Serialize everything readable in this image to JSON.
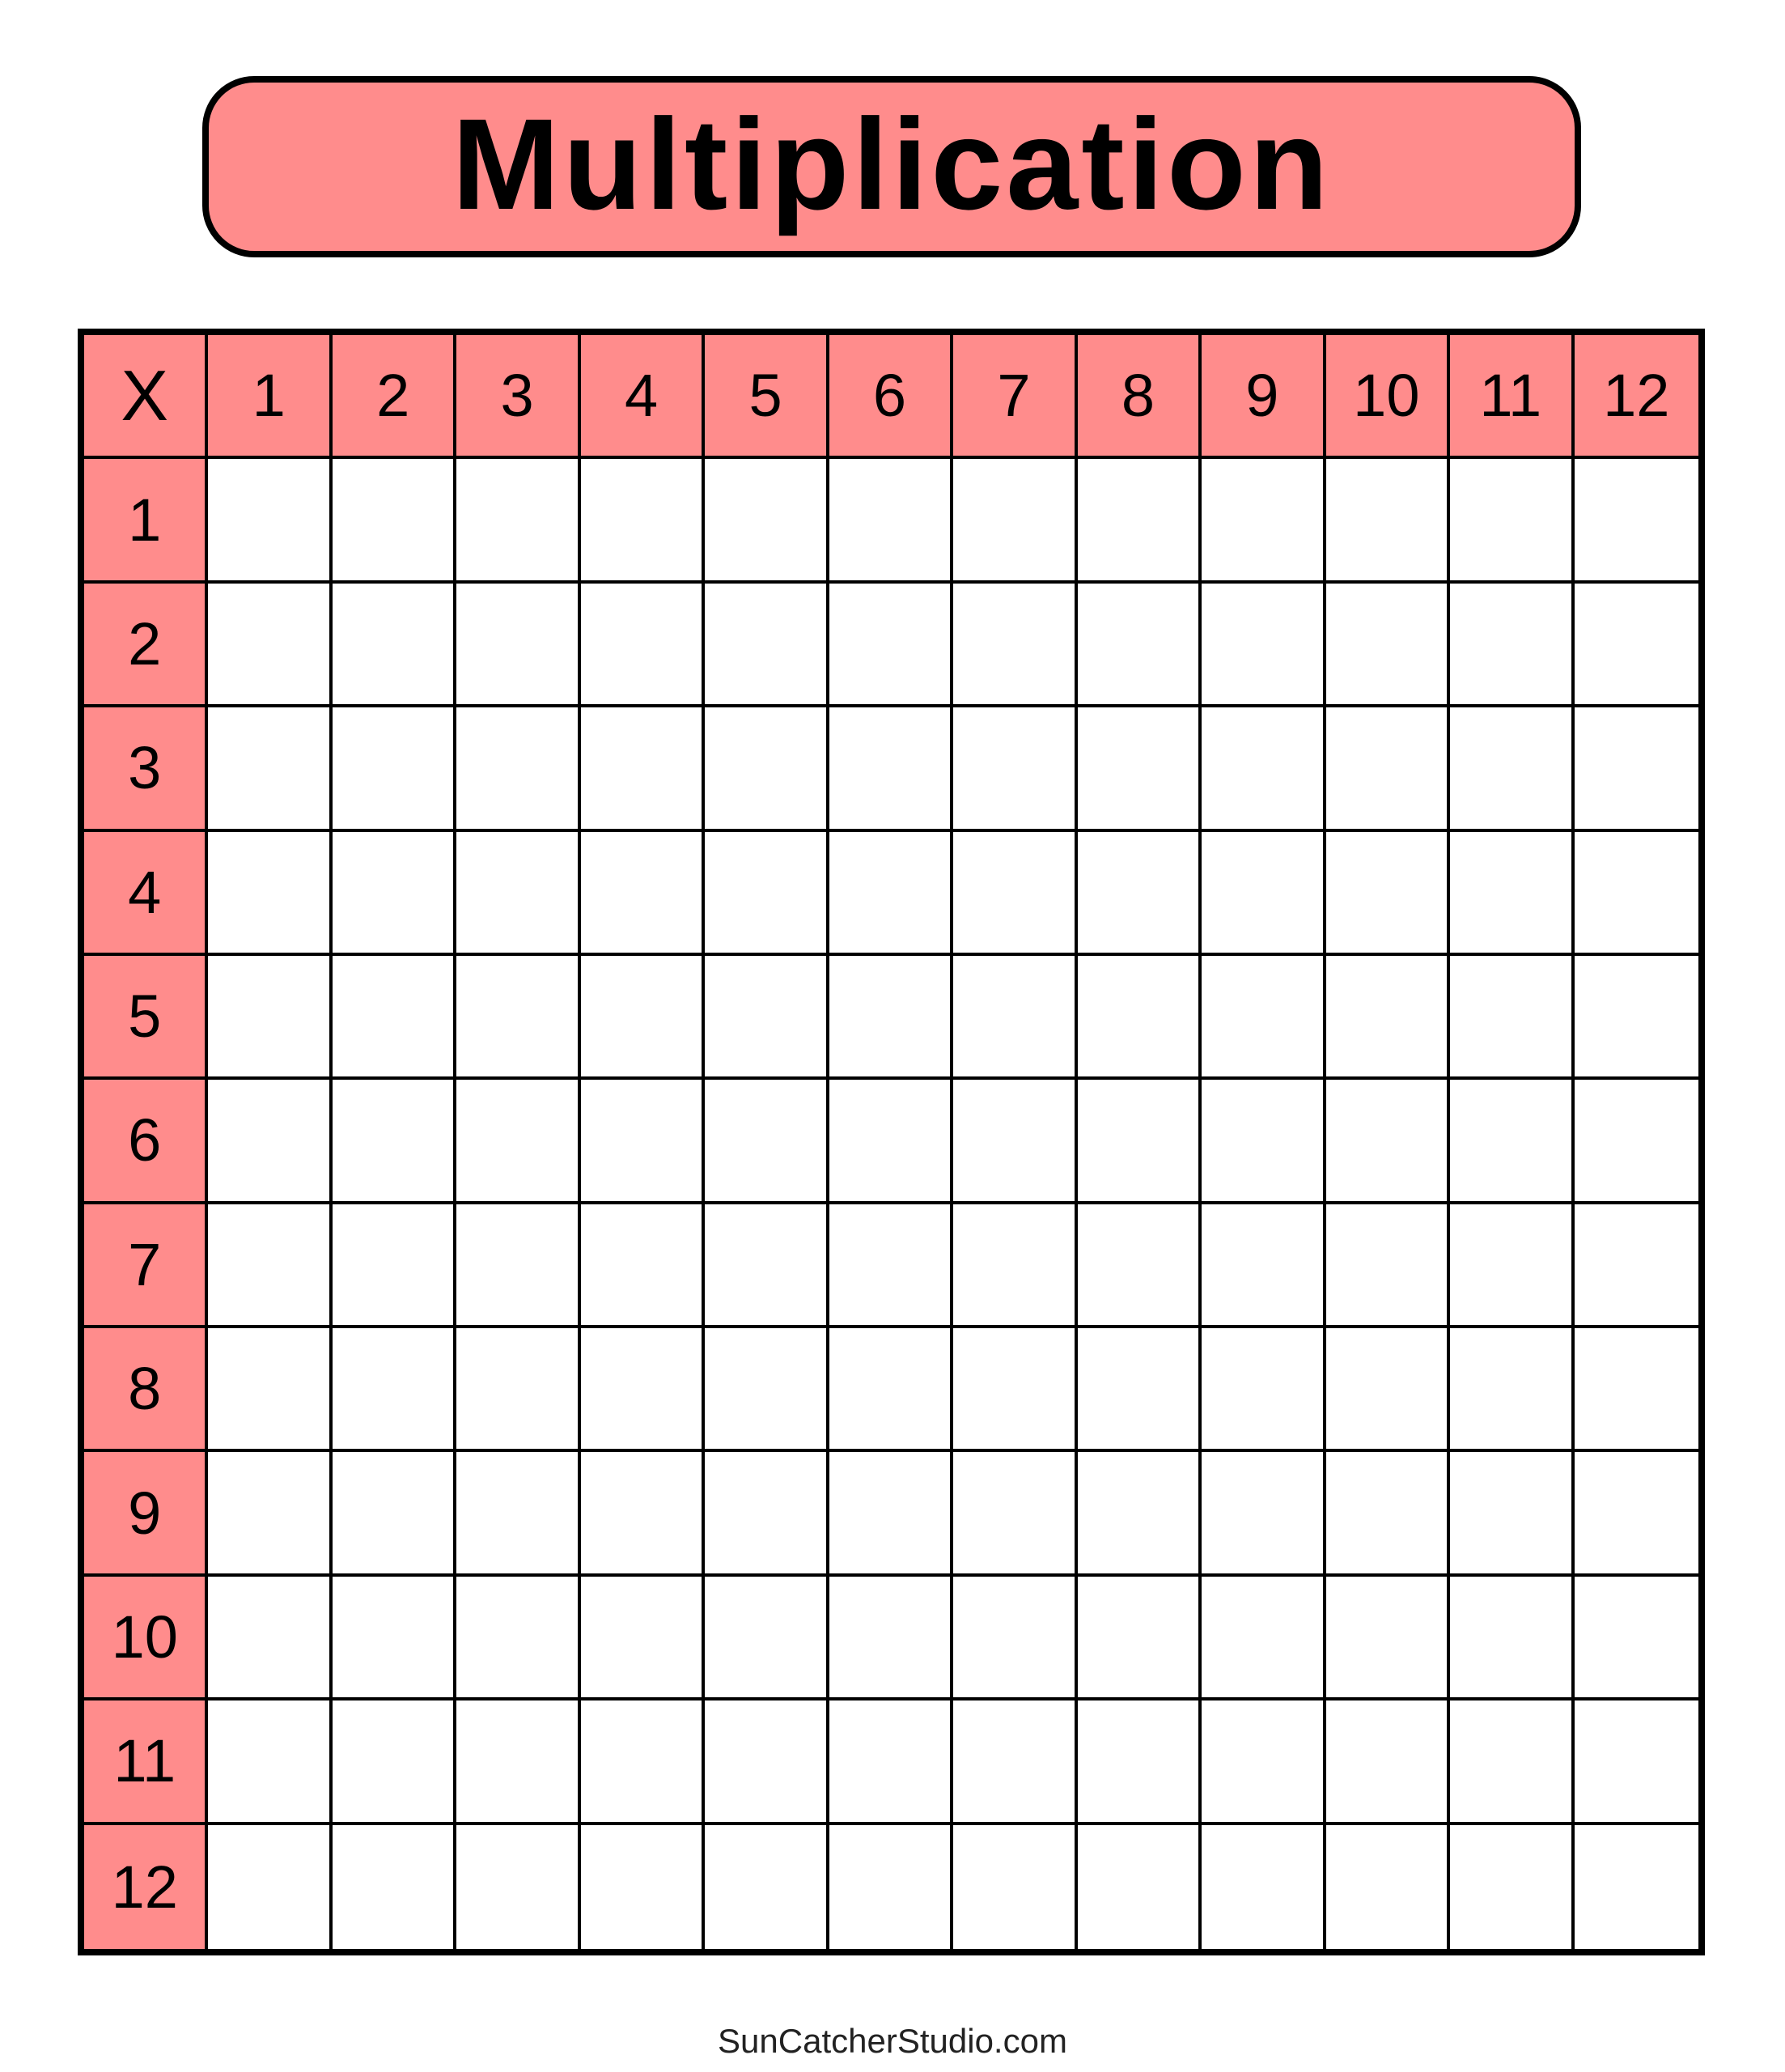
{
  "title": "Multiplication",
  "corner_label": "X",
  "column_headers": [
    "1",
    "2",
    "3",
    "4",
    "5",
    "6",
    "7",
    "8",
    "9",
    "10",
    "11",
    "12"
  ],
  "row_headers": [
    "1",
    "2",
    "3",
    "4",
    "5",
    "6",
    "7",
    "8",
    "9",
    "10",
    "11",
    "12"
  ],
  "footer": "SunCatcherStudio.com",
  "colors": {
    "header_fill": "#ff8c8c",
    "border": "#000000"
  }
}
